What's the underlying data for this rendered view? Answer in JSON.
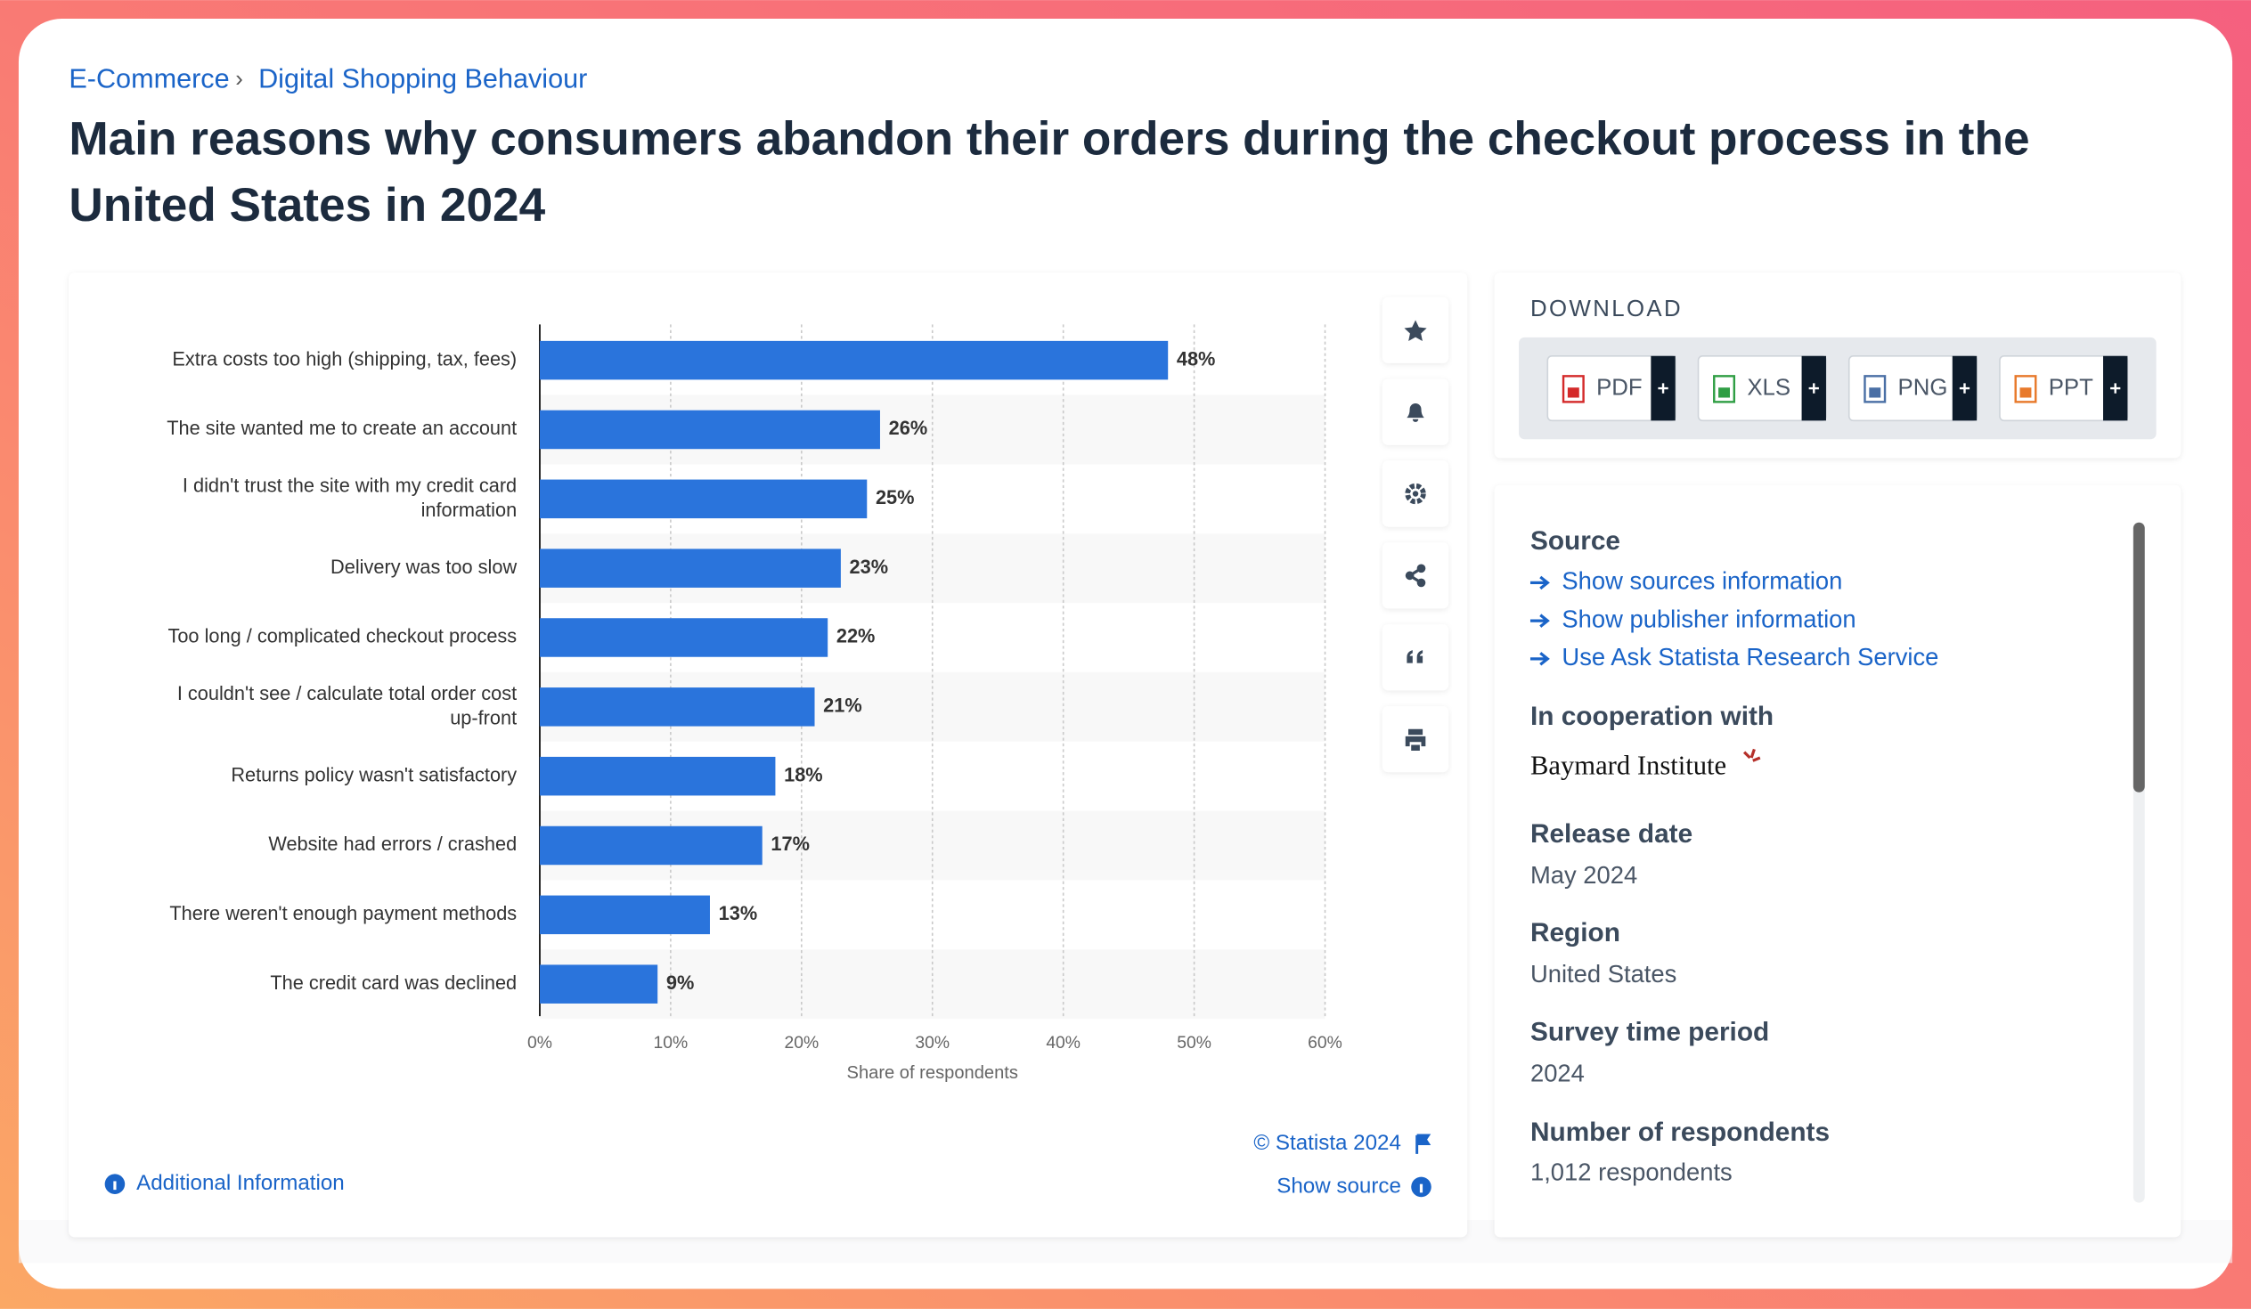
{
  "breadcrumb": [
    "E-Commerce",
    "Digital Shopping Behaviour"
  ],
  "chart_data": {
    "type": "bar",
    "orientation": "horizontal",
    "title": "Main reasons why consumers abandon their orders during the checkout process in the United States in 2024",
    "categories": [
      "Extra costs too high (shipping, tax, fees)",
      "The site wanted me to create an account",
      "I didn't trust the site with my credit card information",
      "Delivery was too slow",
      "Too long / complicated checkout process",
      "I couldn't see / calculate total order cost up-front",
      "Returns policy wasn't satisfactory",
      "Website had errors / crashed",
      "There weren't enough payment methods",
      "The credit card was declined"
    ],
    "values": [
      48,
      26,
      25,
      23,
      22,
      21,
      18,
      17,
      13,
      9
    ],
    "value_labels": [
      "48%",
      "26%",
      "25%",
      "23%",
      "22%",
      "21%",
      "18%",
      "17%",
      "13%",
      "9%"
    ],
    "color": "#2a74dc",
    "xlim": [
      0,
      60
    ],
    "xticks": [
      {
        "value": 0,
        "label": "0%"
      },
      {
        "value": 10,
        "label": "10%"
      },
      {
        "value": 20,
        "label": "20%"
      },
      {
        "value": 30,
        "label": "30%"
      },
      {
        "value": 40,
        "label": "40%"
      },
      {
        "value": 50,
        "label": "50%"
      },
      {
        "value": 60,
        "label": "60%"
      }
    ],
    "xlabel": "Share of respondents",
    "grid": true
  },
  "chart_footer": {
    "copyright": "© Statista 2024",
    "show_source": "Show source",
    "additional": "Additional Information"
  },
  "download": {
    "heading": "DOWNLOAD",
    "formats": [
      "PDF",
      "XLS",
      "PNG",
      "PPT"
    ]
  },
  "info": {
    "source_heading": "Source",
    "source_links": [
      "Show sources information",
      "Show publisher information",
      "Use Ask Statista Research Service"
    ],
    "cooperation_heading": "In cooperation with",
    "cooperation": "Baymard Institute",
    "release_heading": "Release date",
    "release": "May 2024",
    "region_heading": "Region",
    "region": "United States",
    "period_heading": "Survey time period",
    "period": "2024",
    "respondents_heading": "Number of respondents",
    "respondents": "1,012 respondents"
  }
}
